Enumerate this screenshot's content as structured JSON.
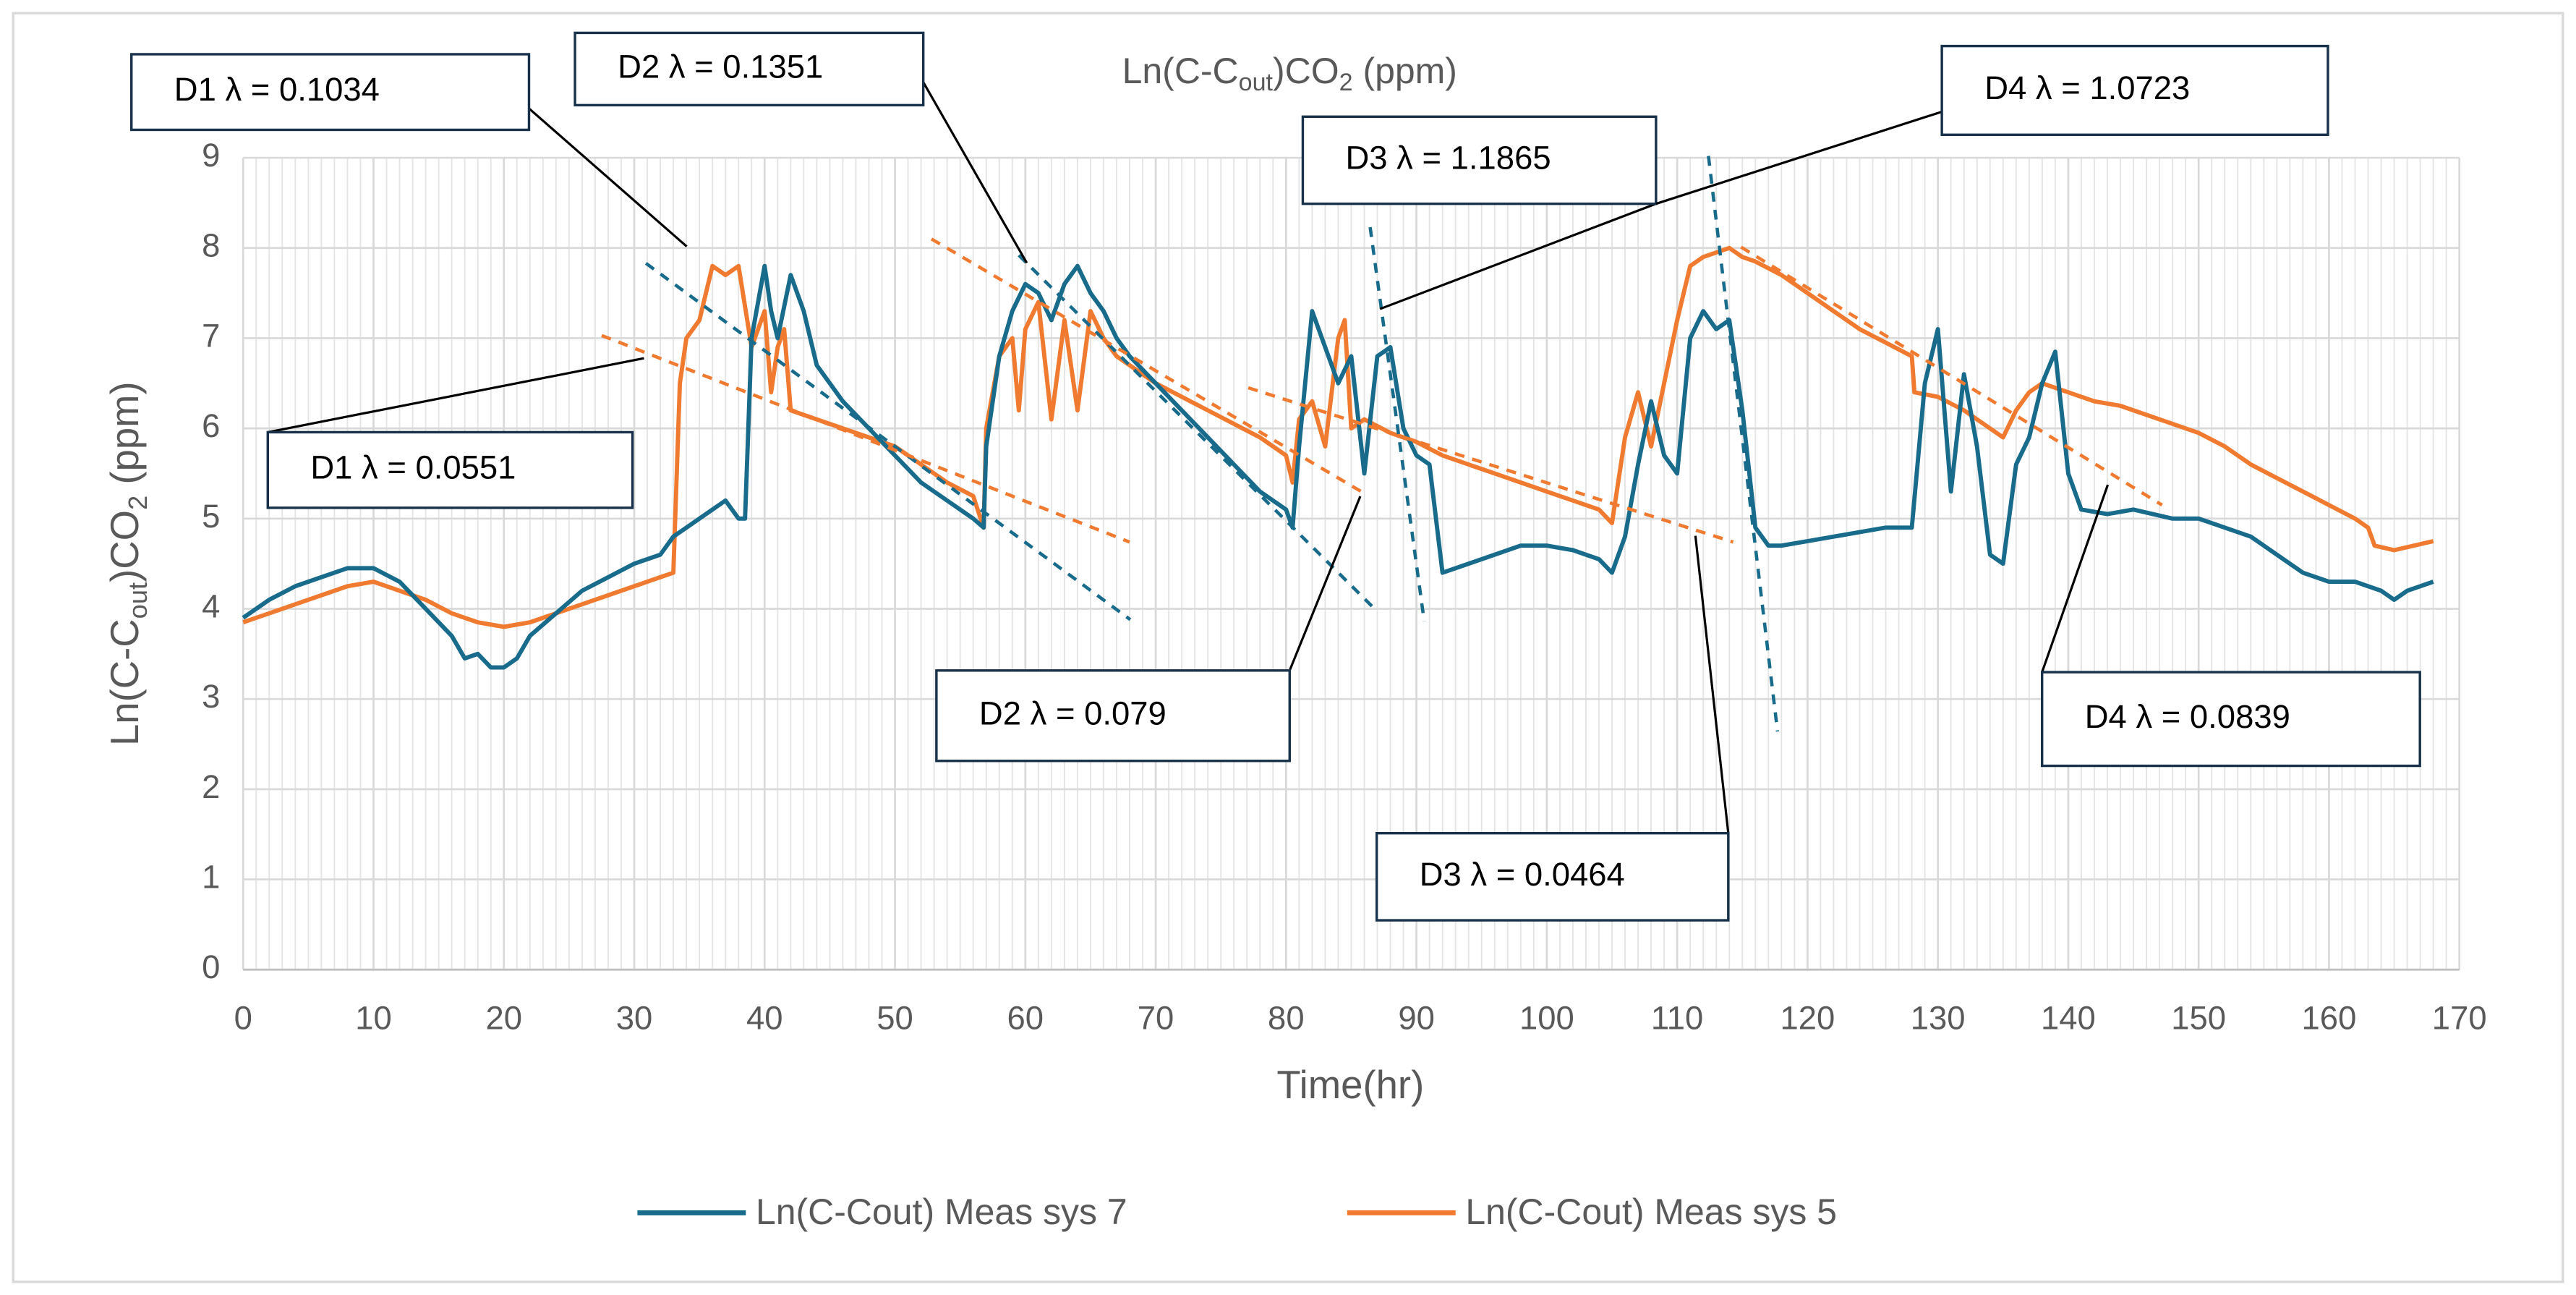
{
  "chart_data": {
    "type": "line",
    "title_parts": [
      "Ln(C-C",
      "out",
      ")CO",
      "2",
      " (ppm)"
    ],
    "y_label_parts": [
      "Ln(C-C",
      "out",
      ")CO",
      "2",
      " (ppm)"
    ],
    "x_label": "Time(hr)",
    "xlim": [
      0,
      170
    ],
    "xticks": [
      0,
      10,
      20,
      30,
      40,
      50,
      60,
      70,
      80,
      90,
      100,
      110,
      120,
      130,
      140,
      150,
      160,
      170
    ],
    "ylim": [
      0,
      9
    ],
    "yticks": [
      0,
      1,
      2,
      3,
      4,
      5,
      6,
      7,
      8,
      9
    ],
    "grid": true,
    "legend": "bottom",
    "series": [
      {
        "name": "Ln(C-Cout) Meas sys 7",
        "color": "#196b8c",
        "x": [
          0,
          2,
          4,
          6,
          8,
          10,
          12,
          14,
          16,
          17,
          18,
          19,
          20,
          21,
          22,
          24,
          26,
          28,
          30,
          32,
          33,
          34,
          36,
          37,
          38,
          38.5,
          39,
          40,
          40.5,
          41,
          42,
          43,
          44,
          46,
          48,
          50,
          52,
          54,
          56,
          56.8,
          57,
          58,
          59,
          60,
          61,
          62,
          63,
          64,
          65,
          66,
          67,
          68,
          70,
          72,
          74,
          76,
          78,
          80,
          80.5,
          81,
          82,
          83,
          84,
          85,
          86,
          87,
          88,
          89,
          90,
          91,
          92,
          94,
          96,
          98,
          100,
          102,
          104,
          105,
          106,
          107,
          108,
          109,
          110,
          111,
          112,
          113,
          114,
          115,
          116,
          117,
          118,
          120,
          122,
          124,
          126,
          128,
          129,
          130,
          131,
          132,
          133,
          134,
          135,
          136,
          137,
          138,
          139,
          140,
          141,
          143,
          145,
          148,
          150,
          152,
          154,
          156,
          158,
          160,
          162,
          164,
          165,
          166,
          168
        ],
        "values": [
          3.9,
          4.1,
          4.25,
          4.35,
          4.45,
          4.45,
          4.3,
          4.0,
          3.7,
          3.45,
          3.5,
          3.35,
          3.35,
          3.45,
          3.7,
          3.95,
          4.2,
          4.35,
          4.5,
          4.6,
          4.8,
          4.9,
          5.1,
          5.2,
          5.0,
          5.0,
          7.0,
          7.8,
          7.3,
          7.0,
          7.7,
          7.3,
          6.7,
          6.3,
          6.0,
          5.7,
          5.4,
          5.2,
          5.0,
          4.9,
          5.8,
          6.8,
          7.3,
          7.6,
          7.5,
          7.2,
          7.6,
          7.8,
          7.5,
          7.3,
          7.0,
          6.8,
          6.5,
          6.2,
          5.9,
          5.6,
          5.3,
          5.1,
          4.9,
          5.8,
          7.3,
          6.9,
          6.5,
          6.8,
          5.5,
          6.8,
          6.9,
          6.0,
          5.7,
          5.6,
          4.4,
          4.5,
          4.6,
          4.7,
          4.7,
          4.65,
          4.55,
          4.4,
          4.8,
          5.6,
          6.3,
          5.7,
          5.5,
          7.0,
          7.3,
          7.1,
          7.2,
          6.2,
          4.9,
          4.7,
          4.7,
          4.75,
          4.8,
          4.85,
          4.9,
          4.9,
          6.5,
          7.1,
          5.3,
          6.6,
          5.8,
          4.6,
          4.5,
          5.6,
          5.9,
          6.5,
          6.85,
          5.5,
          5.1,
          5.05,
          5.1,
          5.0,
          5.0,
          4.9,
          4.8,
          4.6,
          4.4,
          4.3,
          4.3,
          4.2,
          4.1,
          4.2,
          4.3
        ]
      },
      {
        "name": "Ln(C-Cout) Meas sys 5",
        "color": "#f07a30",
        "x": [
          0,
          2,
          4,
          6,
          8,
          10,
          12,
          14,
          16,
          18,
          20,
          22,
          24,
          26,
          28,
          30,
          32,
          33,
          33.5,
          34,
          35,
          36,
          37,
          38,
          39,
          40,
          40.5,
          41,
          41.5,
          42,
          44,
          46,
          48,
          50,
          52,
          54,
          56,
          56.8,
          57,
          58,
          59,
          59.5,
          60,
          61,
          62,
          63,
          64,
          65,
          66,
          67,
          68,
          70,
          72,
          74,
          76,
          78,
          80,
          80.5,
          81,
          82,
          83,
          84,
          84.5,
          85,
          86,
          88,
          90,
          92,
          94,
          96,
          98,
          100,
          102,
          104,
          105,
          106,
          107,
          108,
          109,
          110,
          111,
          112,
          113,
          114,
          115,
          116,
          118,
          120,
          122,
          124,
          126,
          128,
          128.2,
          130,
          132,
          134,
          135,
          136,
          137,
          138,
          140,
          142,
          144,
          146,
          148,
          150,
          152,
          154,
          156,
          158,
          160,
          162,
          163,
          163.5,
          165,
          168
        ],
        "values": [
          3.85,
          3.95,
          4.05,
          4.15,
          4.25,
          4.3,
          4.2,
          4.1,
          3.95,
          3.85,
          3.8,
          3.85,
          3.95,
          4.05,
          4.15,
          4.25,
          4.35,
          4.4,
          6.5,
          7.0,
          7.2,
          7.8,
          7.7,
          7.8,
          6.9,
          7.3,
          6.4,
          6.9,
          7.1,
          6.2,
          6.1,
          6.0,
          5.9,
          5.8,
          5.6,
          5.4,
          5.25,
          4.9,
          6.0,
          6.8,
          7.0,
          6.2,
          7.1,
          7.4,
          6.1,
          7.2,
          6.2,
          7.3,
          7.0,
          6.8,
          6.7,
          6.5,
          6.35,
          6.2,
          6.05,
          5.9,
          5.7,
          5.4,
          6.1,
          6.3,
          5.8,
          7.0,
          7.2,
          6.0,
          6.1,
          5.95,
          5.85,
          5.7,
          5.6,
          5.5,
          5.4,
          5.3,
          5.2,
          5.1,
          4.95,
          5.9,
          6.4,
          5.8,
          6.5,
          7.2,
          7.8,
          7.9,
          7.95,
          8.0,
          7.9,
          7.85,
          7.7,
          7.5,
          7.3,
          7.1,
          6.95,
          6.8,
          6.4,
          6.35,
          6.2,
          6.0,
          5.9,
          6.2,
          6.4,
          6.5,
          6.4,
          6.3,
          6.25,
          6.15,
          6.05,
          5.95,
          5.8,
          5.6,
          5.45,
          5.3,
          5.15,
          5.0,
          4.9,
          4.7,
          4.65,
          4.75
        ]
      }
    ],
    "trendlines": [
      {
        "color": "#196b8c",
        "x": [
          30.9,
          68.05
        ],
        "y": [
          7.83,
          3.88
        ]
      },
      {
        "color": "#f07a30",
        "x": [
          27.5,
          68
        ],
        "y": [
          7.03,
          4.74
        ]
      },
      {
        "color": "#196b8c",
        "x": [
          59.5,
          87
        ],
        "y": [
          7.92,
          3.97
        ]
      },
      {
        "color": "#f07a30",
        "x": [
          52.8,
          86
        ],
        "y": [
          8.1,
          5.28
        ]
      },
      {
        "color": "#196b8c",
        "x": [
          86.45,
          90.6
        ],
        "y": [
          8.23,
          3.86
        ]
      },
      {
        "color": "#f07a30",
        "x": [
          77.1,
          114.3
        ],
        "y": [
          6.45,
          4.74
        ]
      },
      {
        "color": "#196b8c",
        "x": [
          112.4,
          117.7
        ],
        "y": [
          9.02,
          2.64
        ]
      },
      {
        "color": "#f07a30",
        "x": [
          114.9,
          147.2
        ],
        "y": [
          8.01,
          5.15
        ]
      }
    ],
    "annotations": [
      "D1 λ = 0.1034",
      "D1 λ = 0.0551",
      "D2 λ = 0.1351",
      "D2 λ = 0.079",
      "D3 λ = 1.1865",
      "D3 λ = 0.0464",
      "D4 λ = 1.0723",
      "D4 λ = 0.0839"
    ]
  }
}
